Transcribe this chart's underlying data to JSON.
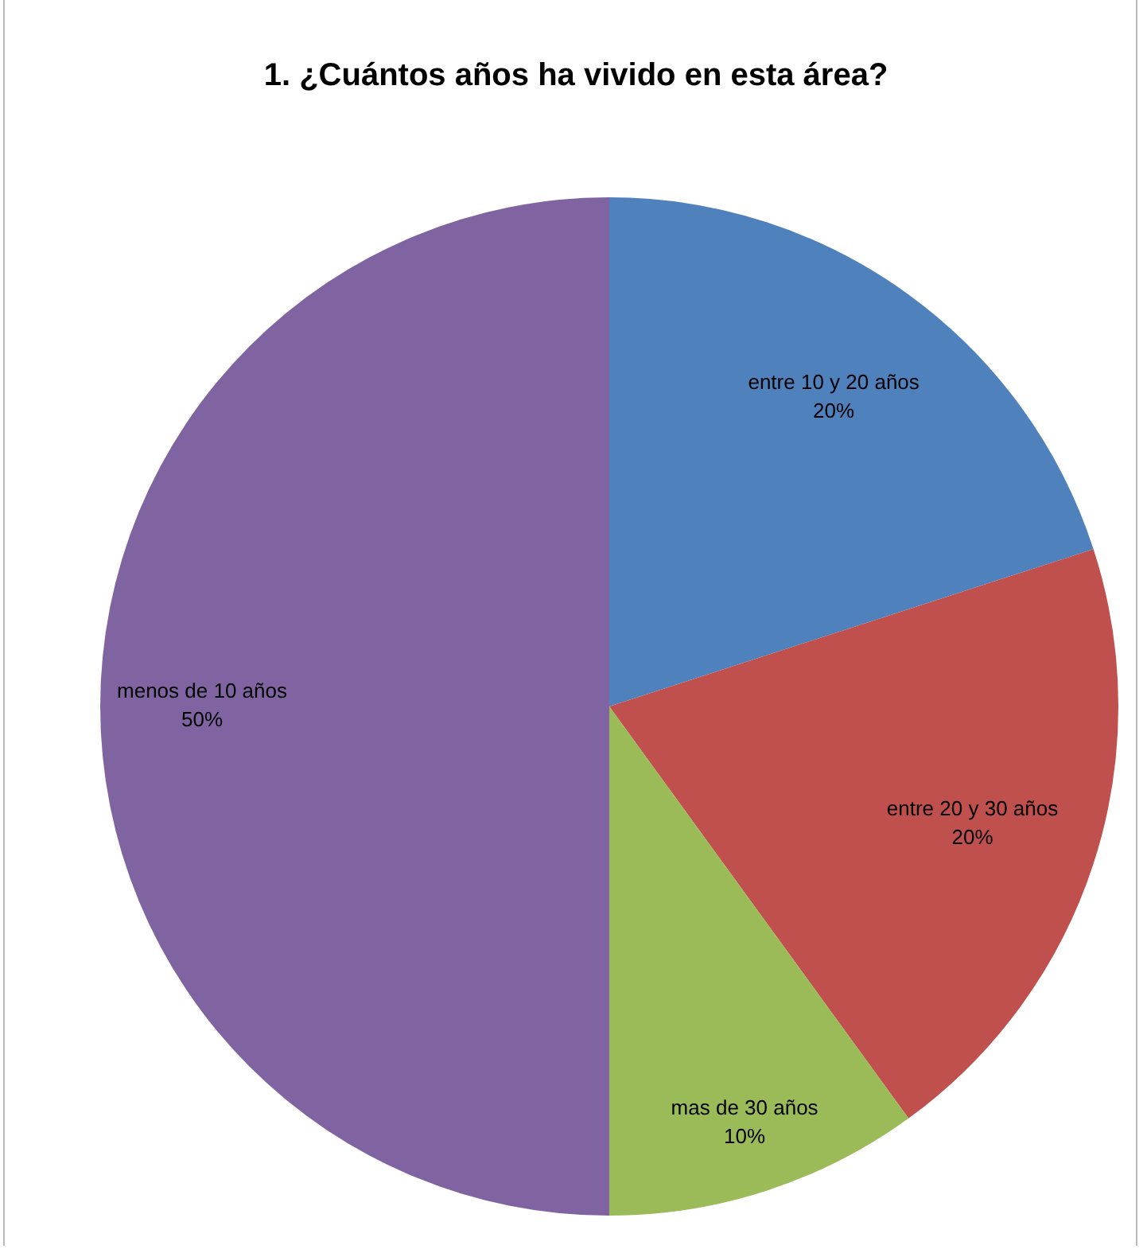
{
  "chart_data": {
    "type": "pie",
    "title": "1. ¿Cuántos años ha vivido en esta área?",
    "categories": [
      "entre 10 y 20 años",
      "entre 20 y 30 años",
      "mas de 30 años",
      "menos de 10 años"
    ],
    "values": [
      20,
      20,
      10,
      50
    ],
    "colors": [
      "#4f81bd",
      "#c0504d",
      "#9bbb59",
      "#8064a2"
    ],
    "value_labels": [
      "20%",
      "20%",
      "10%",
      "50%"
    ],
    "legend": false
  }
}
